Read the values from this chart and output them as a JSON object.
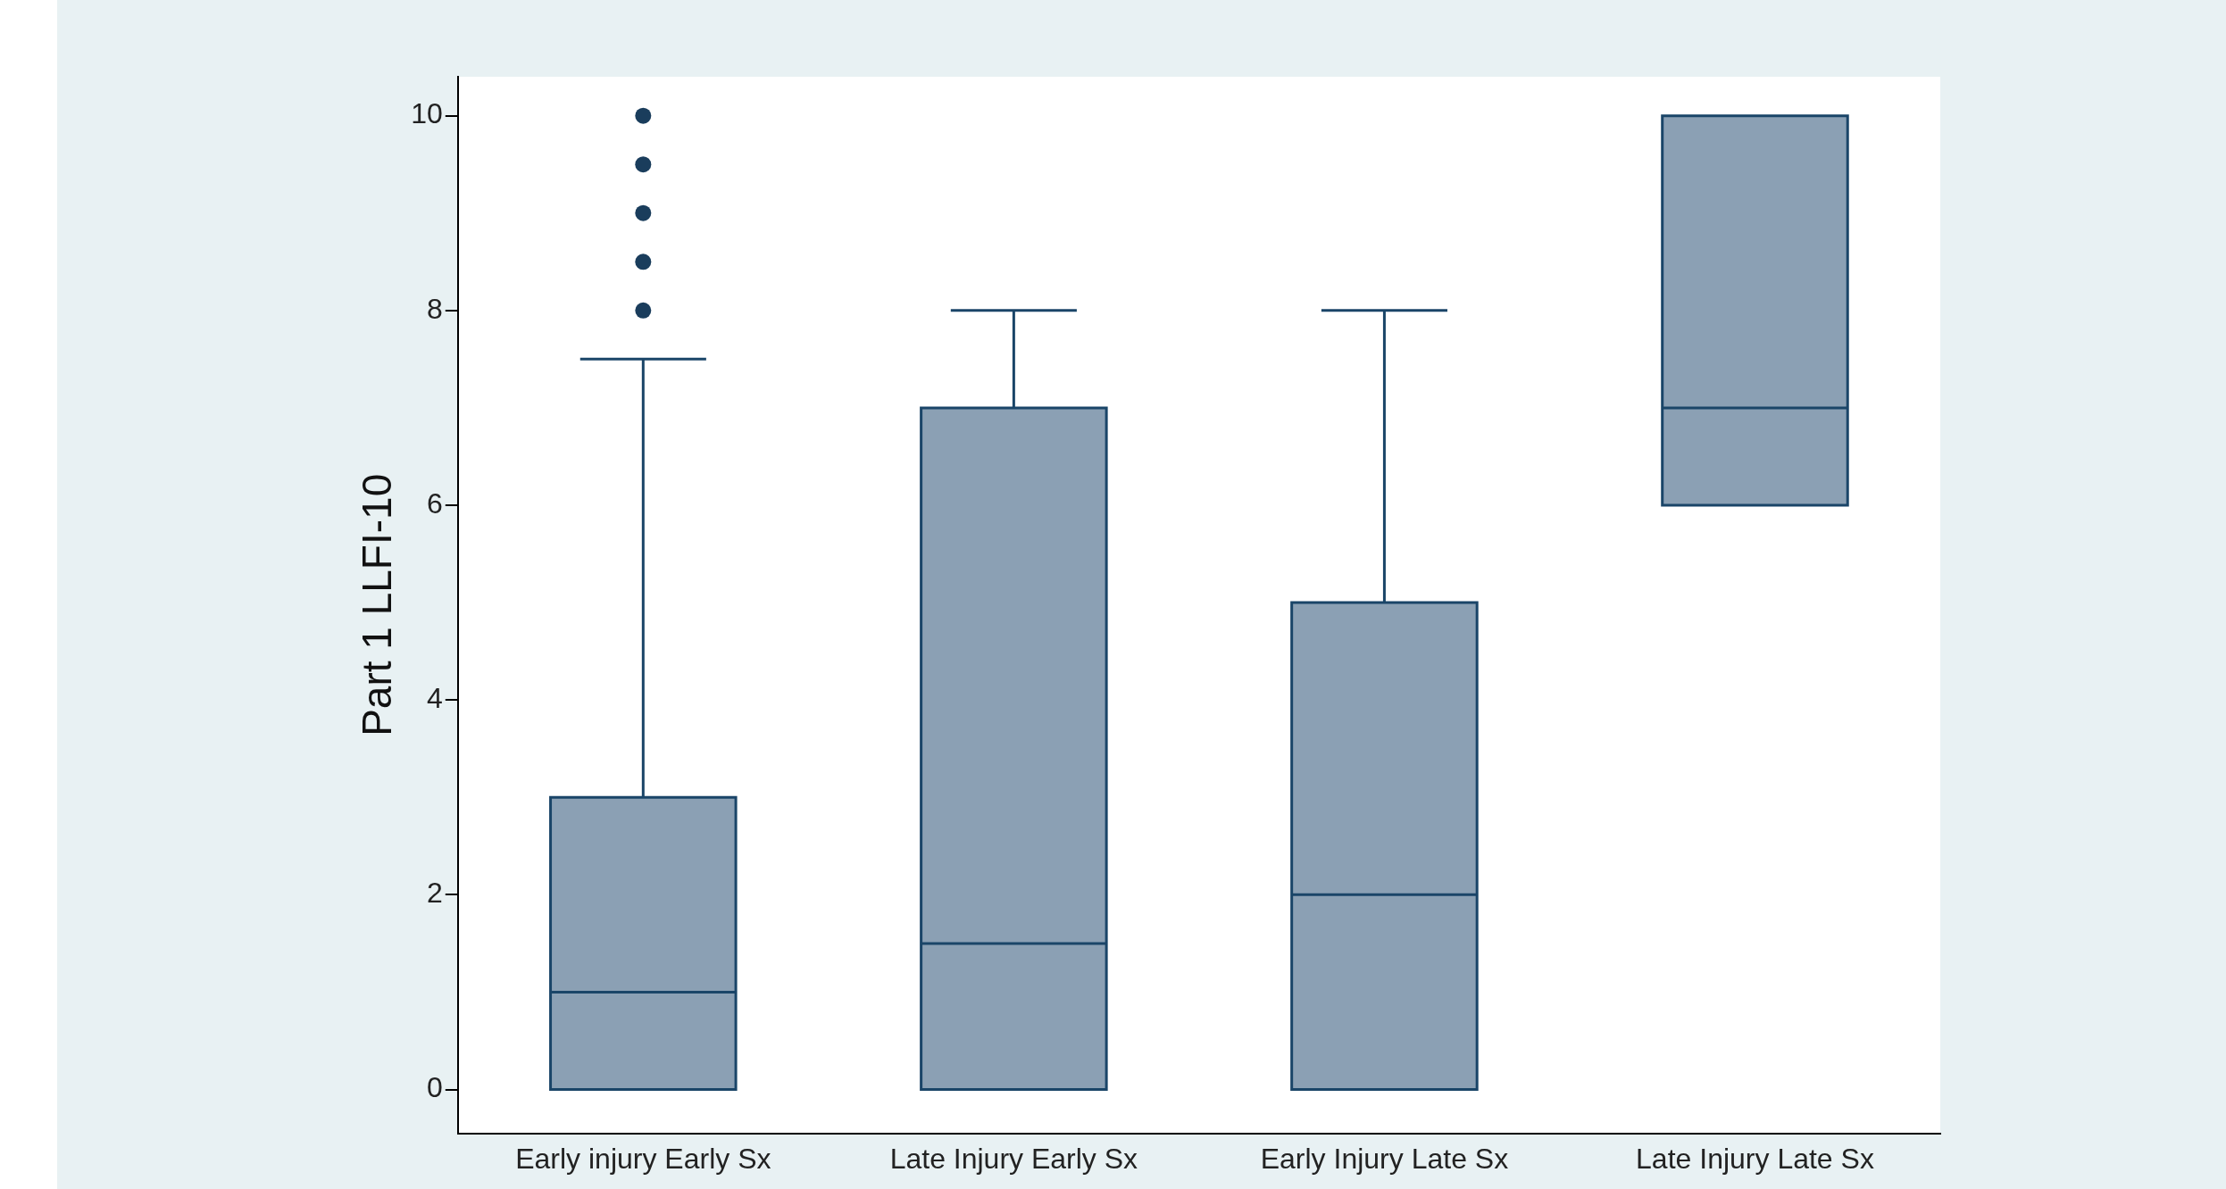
{
  "chart_data": {
    "type": "box",
    "ylabel": "Part 1 LLFI-10",
    "categories": [
      "Early injury Early Sx",
      "Late Injury Early Sx",
      "Early Injury Late Sx",
      "Late Injury Late Sx"
    ],
    "boxes": [
      {
        "low": 0,
        "q1": 0,
        "median": 1,
        "q3": 3,
        "high": 7.5,
        "outliers": [
          8,
          8.5,
          9,
          9.5,
          10
        ]
      },
      {
        "low": 0,
        "q1": 0,
        "median": 1.5,
        "q3": 7,
        "high": 8
      },
      {
        "low": 0,
        "q1": 0,
        "median": 2,
        "q3": 5,
        "high": 8
      },
      {
        "low": 6,
        "q1": 6,
        "median": 7,
        "q3": 10,
        "high": 10
      }
    ],
    "color": "#8ba0b4",
    "ylim": [
      -0.45,
      10.4
    ],
    "yticks": [
      0,
      2,
      4,
      6,
      8,
      10
    ],
    "grid": false,
    "marker": "circle"
  }
}
